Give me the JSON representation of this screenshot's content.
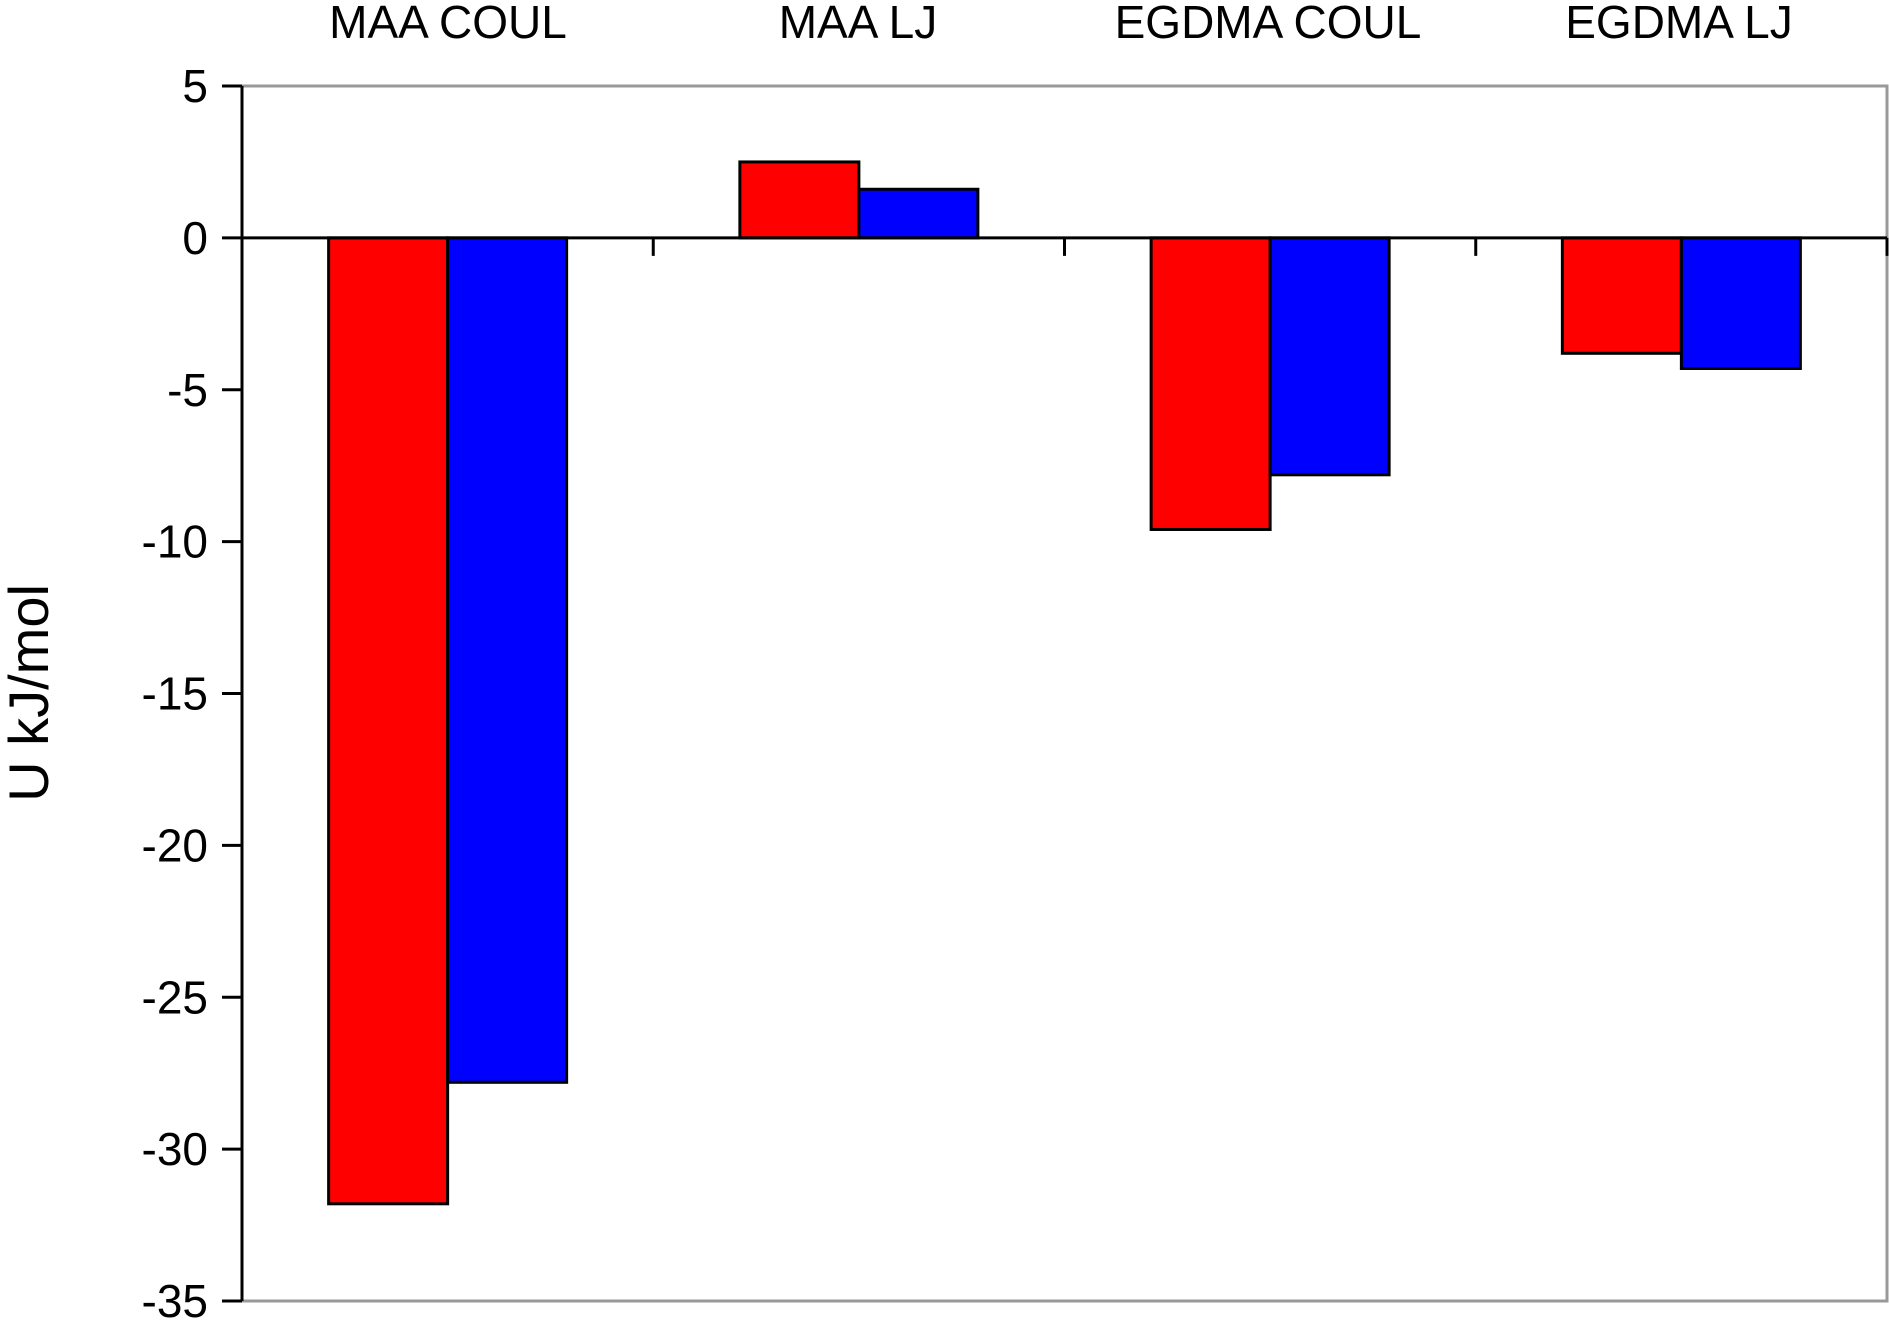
{
  "chart_data": {
    "type": "bar",
    "categories": [
      "MAA COUL",
      "MAA LJ",
      "EGDMA COUL",
      "EGDMA LJ"
    ],
    "series": [
      {
        "values": [
          -31.8,
          2.5,
          -9.6,
          -3.8
        ],
        "color": "#ff0000"
      },
      {
        "values": [
          -27.8,
          1.6,
          -7.8,
          -4.3
        ],
        "color": "#0000ff"
      }
    ],
    "ylabel": "U kJ/mol",
    "ylim": [
      -35,
      5
    ],
    "yticks": [
      5,
      0,
      -5,
      -10,
      -15,
      -20,
      -25,
      -30,
      -35
    ],
    "ytick_labels": [
      "5",
      "0",
      "-5",
      "-10",
      "-15",
      "-20",
      "-25",
      "-30",
      "-35"
    ],
    "category_label_position": "top",
    "grid": false,
    "legend": "none",
    "colors": {
      "plot_border": "#999999",
      "bar_outline": "#000000"
    }
  }
}
